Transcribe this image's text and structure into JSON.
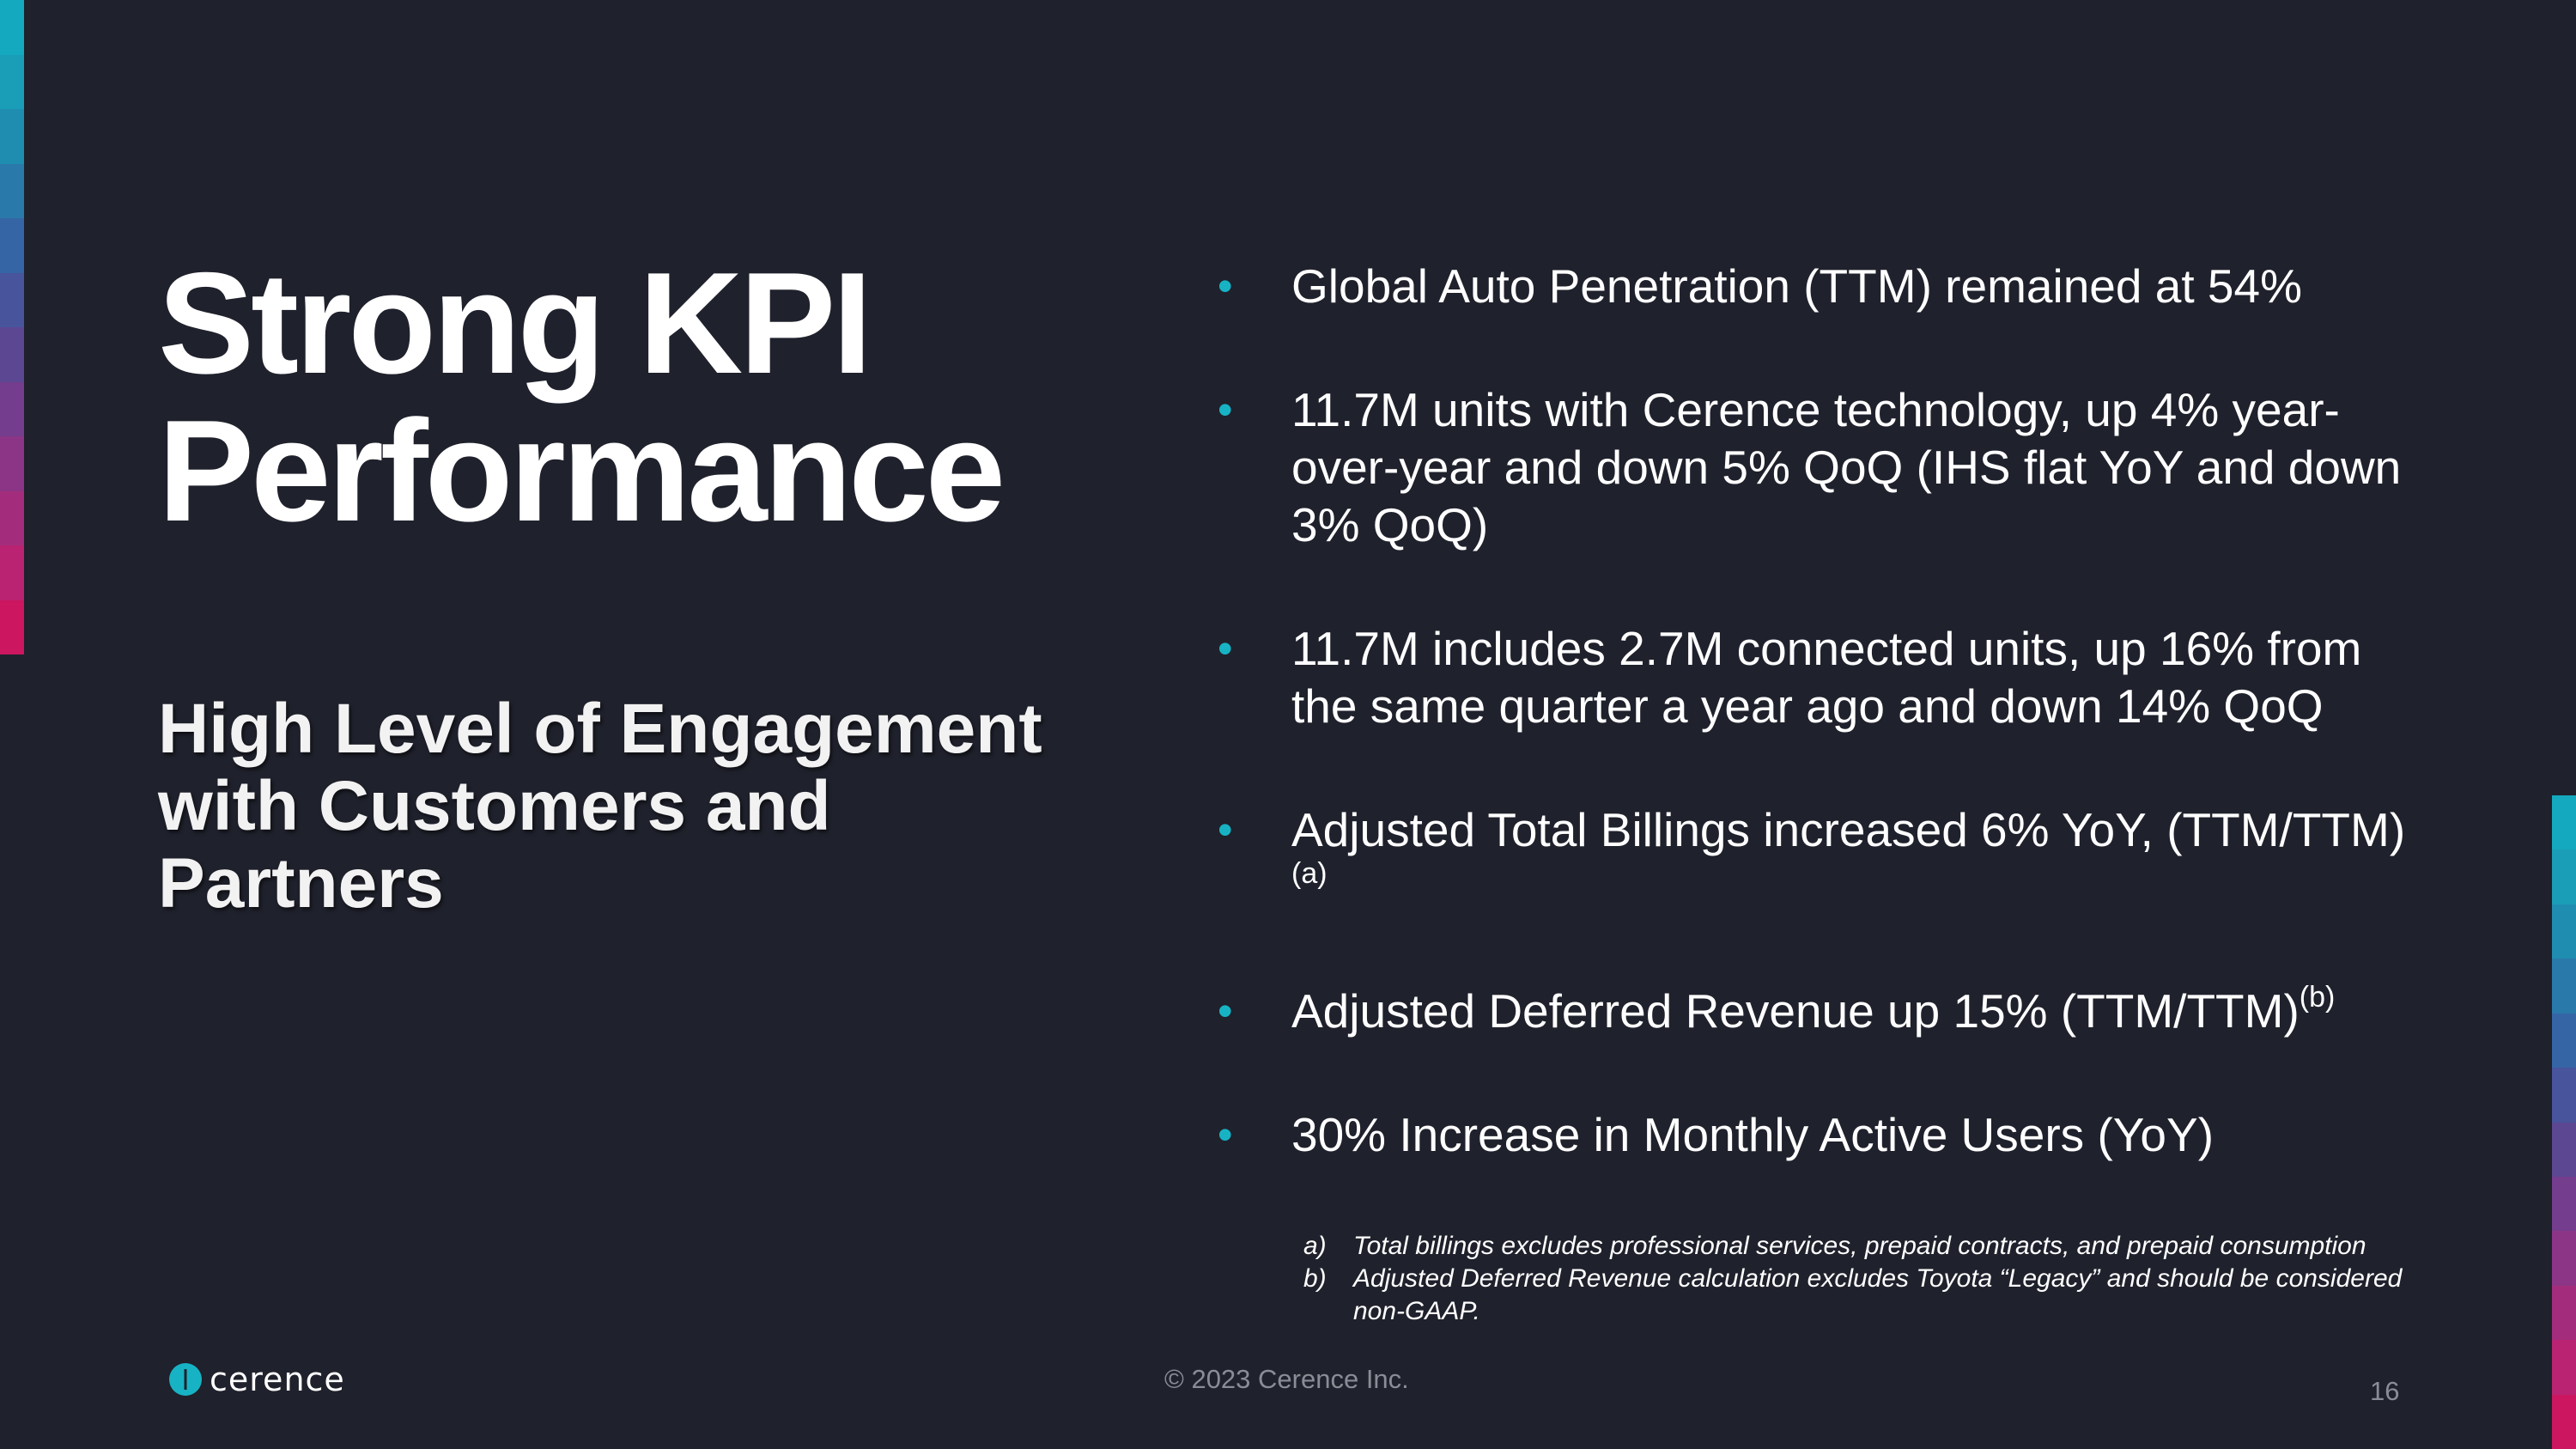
{
  "slide": {
    "title_line1": "Strong KPI",
    "title_line2": "Performance",
    "subtitle_line1": "High Level of Engagement",
    "subtitle_line2": "with Customers and",
    "subtitle_line3": "Partners"
  },
  "bullets": [
    {
      "text": "Global Auto Penetration (TTM)  remained at 54%"
    },
    {
      "text": "11.7M units with Cerence technology, up 4% year-over-year and down 5% QoQ (IHS flat YoY and down 3% QoQ)"
    },
    {
      "text": "11.7M includes 2.7M connected units, up 16% from the same quarter a year ago and down 14% QoQ"
    },
    {
      "text": "Adjusted Total Billings increased 6% YoY, (TTM/TTM) ",
      "sup": "(a)"
    },
    {
      "text": "Adjusted Deferred Revenue up 15% (TTM/TTM)",
      "sup": "(b)"
    },
    {
      "text": "30% Increase in Monthly Active Users (YoY)"
    }
  ],
  "bullet_glyph": "•",
  "footnotes": [
    {
      "marker": "a)",
      "text": "Total billings excludes professional services, prepaid contracts, and prepaid consumption"
    },
    {
      "marker": "b)",
      "text": "Adjusted Deferred Revenue calculation excludes Toyota “Legacy” and should be considered non-GAAP."
    }
  ],
  "footer": {
    "logo_text": "cerence",
    "logo_mark": "·",
    "copyright": "© 2023 Cerence Inc.",
    "page_number": "16"
  },
  "colors": {
    "background": "#1f212c",
    "bullet_accent": "#17b3c4",
    "strip": [
      "#14a9be",
      "#1992ad",
      "#2a73aa",
      "#3e58a0",
      "#5a4794",
      "#7a3b8c",
      "#943383",
      "#ae2a78",
      "#c21e6a",
      "#d31458"
    ]
  }
}
